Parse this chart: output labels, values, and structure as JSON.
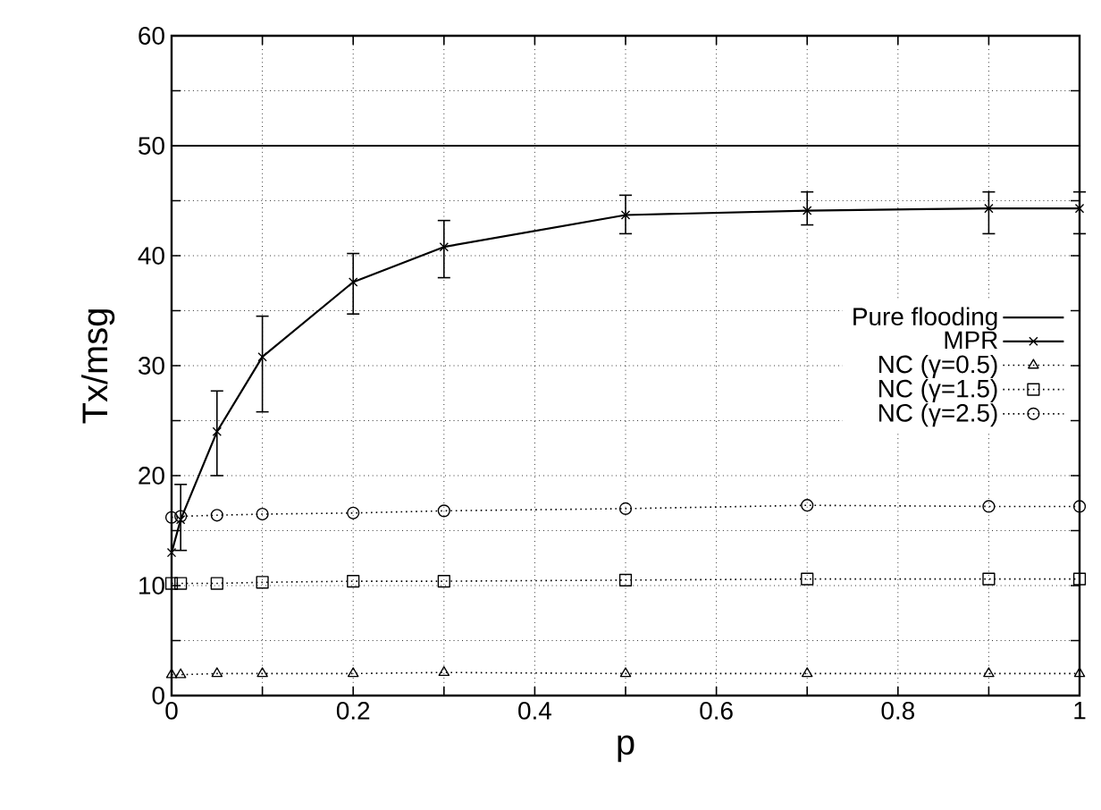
{
  "chart_data": {
    "type": "line",
    "xlabel": "p",
    "ylabel": "Tx/msg",
    "x": [
      0,
      0.01,
      0.05,
      0.1,
      0.2,
      0.3,
      0.5,
      0.7,
      0.9,
      1
    ],
    "xlim": [
      0,
      1
    ],
    "ylim": [
      0,
      60
    ],
    "xticks": [
      0,
      {
        "value": 0.1,
        "label": null
      },
      0.2,
      {
        "value": 0.3,
        "label": null
      },
      0.4,
      {
        "value": 0.5,
        "label": null
      },
      0.6,
      {
        "value": 0.7,
        "label": null
      },
      0.8,
      {
        "value": 0.9,
        "label": null
      },
      1
    ],
    "yticks": [
      0,
      {
        "value": 5,
        "label": null
      },
      10,
      {
        "value": 15,
        "label": null
      },
      20,
      {
        "value": 25,
        "label": null
      },
      30,
      {
        "value": 35,
        "label": null
      },
      40,
      {
        "value": 45,
        "label": null
      },
      50,
      {
        "value": 55,
        "label": null
      },
      60
    ],
    "grid": true,
    "legend": "right",
    "ref_lines": [
      {
        "axis": "y",
        "value": 50,
        "label": "Pure flooding",
        "color": "#000000",
        "line_style": "solid"
      }
    ],
    "series": [
      {
        "name": "MPR",
        "color": "#000000",
        "marker": "cross",
        "line_style": "solid",
        "values": [
          13,
          16,
          24,
          30.8,
          37.6,
          40.8,
          43.7,
          44.1,
          44.3,
          44.3
        ],
        "errors": [
          null,
          [
            13.2,
            19.2
          ],
          [
            20,
            27.7
          ],
          [
            25.8,
            34.5
          ],
          [
            34.7,
            40.2
          ],
          [
            38,
            43.2
          ],
          [
            42,
            45.5
          ],
          [
            42.8,
            45.8
          ],
          [
            42,
            45.8
          ],
          [
            42,
            45.8
          ]
        ]
      },
      {
        "name": "NC (γ=0.5)",
        "color": "#000000",
        "marker": "triangle",
        "line_style": "dotted",
        "values": [
          1.9,
          1.9,
          2,
          2,
          2,
          2.1,
          2,
          2,
          2,
          2
        ]
      },
      {
        "name": "NC (γ=1.5)",
        "color": "#000000",
        "marker": "square",
        "line_style": "dotted",
        "values": [
          10.2,
          10.2,
          10.2,
          10.3,
          10.4,
          10.4,
          10.5,
          10.6,
          10.6,
          10.6
        ]
      },
      {
        "name": "NC (γ=2.5)",
        "color": "#000000",
        "marker": "circle",
        "line_style": "dotted",
        "values": [
          16.2,
          16.3,
          16.4,
          16.5,
          16.6,
          16.8,
          17,
          17.3,
          17.2,
          17.2
        ]
      }
    ]
  }
}
